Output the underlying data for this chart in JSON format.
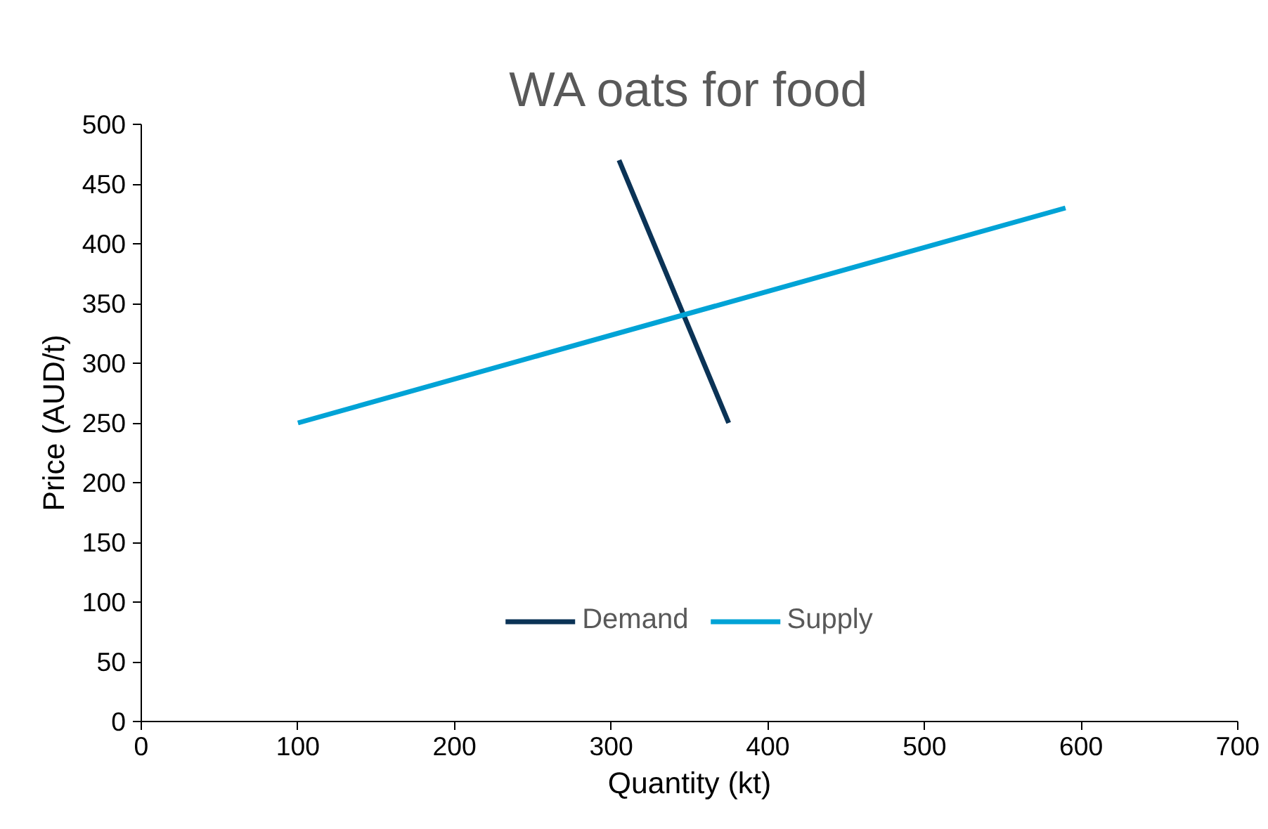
{
  "chart_data": {
    "type": "line",
    "title": "WA oats for food",
    "xlabel": "Quantity (kt)",
    "ylabel": "Price (AUD/t)",
    "series": [
      {
        "name": "Demand",
        "color": "#0b3356",
        "x": [
          305,
          375
        ],
        "values": [
          470,
          250
        ]
      },
      {
        "name": "Supply",
        "color": "#00a3d6",
        "x": [
          100,
          590
        ],
        "values": [
          250,
          430
        ]
      }
    ],
    "xlim": [
      0,
      700
    ],
    "xticks": [
      0,
      100,
      200,
      300,
      400,
      500,
      600,
      700
    ],
    "ylim": [
      0,
      500
    ],
    "yticks": [
      0,
      50,
      100,
      150,
      200,
      250,
      300,
      350,
      400,
      450,
      500
    ],
    "grid": false,
    "legend": "bottom",
    "marker": "none",
    "line_style": "solid"
  }
}
